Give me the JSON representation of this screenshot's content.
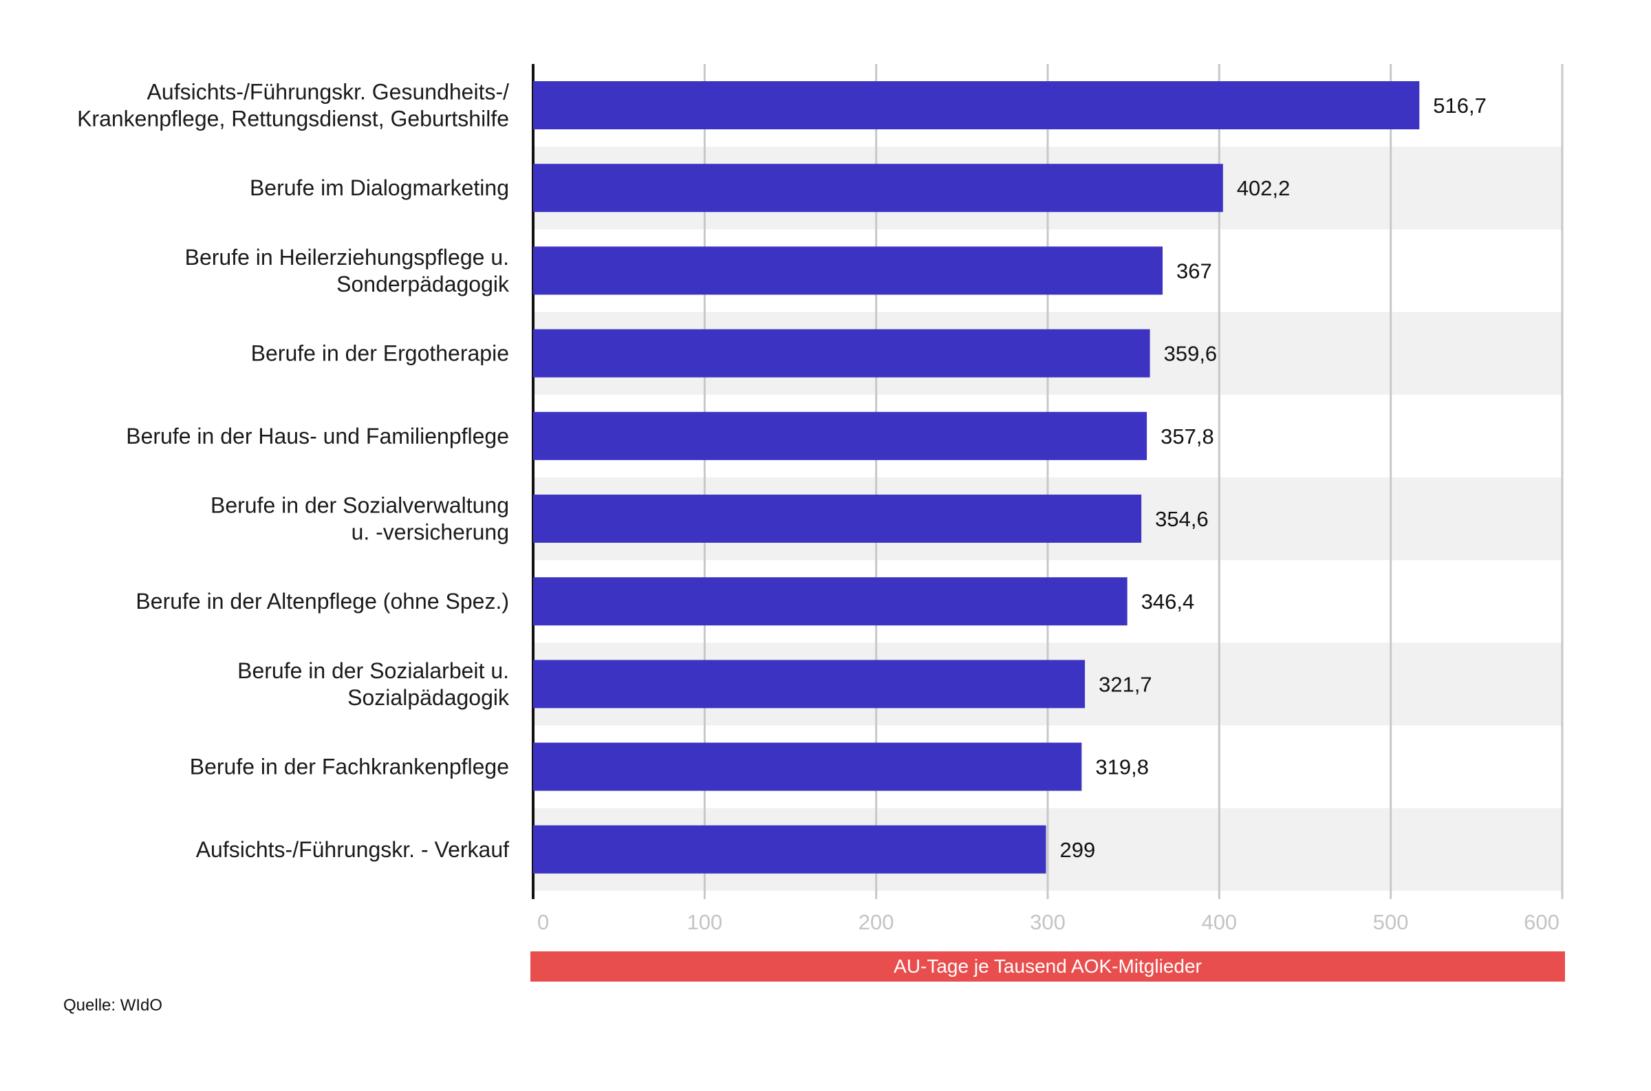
{
  "chart_data": {
    "type": "bar",
    "orientation": "horizontal",
    "categories": [
      [
        "Aufsichts-/Führungskr. Gesundheits-/",
        "Krankenpflege, Rettungsdienst, Geburtshilfe"
      ],
      [
        "Berufe im Dialogmarketing"
      ],
      [
        "Berufe in Heilerziehungspflege u.",
        "Sonderpädagogik"
      ],
      [
        "Berufe in der Ergotherapie"
      ],
      [
        "Berufe in der Haus- und Familienpflege"
      ],
      [
        "Berufe in der Sozialverwaltung",
        "u. -versicherung"
      ],
      [
        "Berufe in der Altenpflege (ohne Spez.)"
      ],
      [
        "Berufe in der Sozialarbeit u.",
        "Sozialpädagogik"
      ],
      [
        "Berufe in der Fachkrankenpflege"
      ],
      [
        "Aufsichts-/Führungskr. - Verkauf"
      ]
    ],
    "values": [
      516.7,
      402.2,
      367,
      359.6,
      357.8,
      354.6,
      346.4,
      321.7,
      319.8,
      299
    ],
    "value_labels": [
      "516,7",
      "402,2",
      "367",
      "359,6",
      "357,8",
      "354,6",
      "346,4",
      "321,7",
      "319,8",
      "299"
    ],
    "xlim": [
      0,
      600
    ],
    "xticks": [
      0,
      100,
      200,
      300,
      400,
      500,
      600
    ],
    "xtick_labels": [
      "0",
      "100",
      "200",
      "300",
      "400",
      "500",
      "600"
    ],
    "xlabel": "AU-Tage je Tausend AOK-Mitglieder",
    "grid": true,
    "colors": {
      "bar": "#3d33c2",
      "band": "#f1f1f1",
      "grid": "#c8c8c8",
      "axis_banner": "#e94e4e"
    }
  },
  "source": "Quelle: WIdO"
}
